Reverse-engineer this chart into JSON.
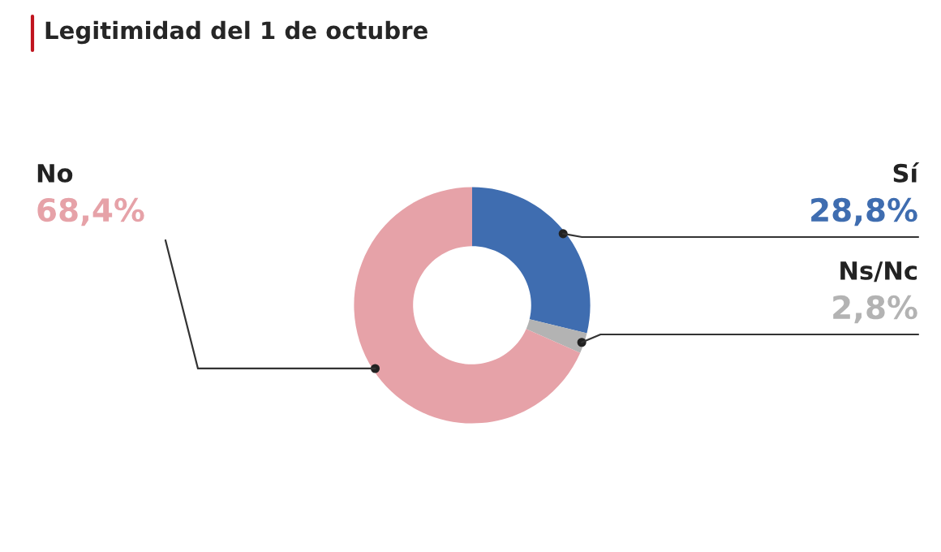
{
  "chart_data": {
    "type": "donut",
    "title": "Legitimidad del 1 de octubre",
    "categories": [
      "Sí",
      "Ns/Nc",
      "No"
    ],
    "values": [
      28.8,
      2.8,
      68.4
    ],
    "value_labels": [
      "28,8%",
      "2,8%",
      "68,4%"
    ],
    "colors": [
      "#3f6db0",
      "#b3b3b3",
      "#e6a2a8"
    ],
    "legend": false
  }
}
